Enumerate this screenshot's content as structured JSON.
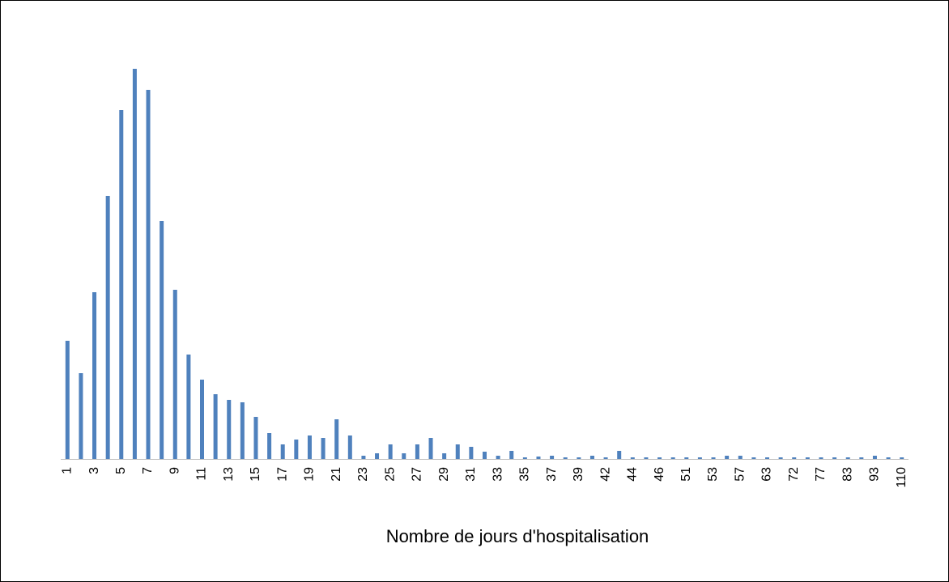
{
  "chart_data": {
    "type": "bar",
    "x_label": "Nombre de jours d'hospitalisation",
    "categories": [
      "1",
      null,
      "3",
      null,
      "5",
      null,
      "7",
      null,
      "9",
      null,
      "11",
      null,
      "13",
      null,
      "15",
      null,
      "17",
      null,
      "19",
      null,
      "21",
      null,
      "23",
      null,
      "25",
      null,
      "27",
      null,
      "29",
      null,
      "31",
      null,
      "33",
      null,
      "35",
      null,
      "37",
      null,
      "39",
      null,
      "42",
      null,
      "44",
      null,
      "46",
      null,
      "51",
      null,
      "53",
      null,
      "57",
      null,
      "63",
      null,
      "72",
      null,
      "77",
      null,
      "83",
      null,
      "93",
      null,
      "110"
    ],
    "values": [
      146,
      106,
      206,
      325,
      431,
      482,
      456,
      294,
      209,
      129,
      98,
      80,
      73,
      70,
      52,
      32,
      18,
      24,
      29,
      26,
      49,
      29,
      4,
      7,
      18,
      7,
      18,
      26,
      7,
      18,
      15,
      9,
      4,
      10,
      2,
      3,
      4,
      2,
      2,
      4,
      2,
      10,
      2,
      2,
      2,
      2,
      2,
      2,
      2,
      4,
      4,
      2,
      2,
      2,
      2,
      2,
      2,
      2,
      2,
      2,
      4,
      2,
      2
    ],
    "color": "#4f81bd",
    "ylim": [
      0,
      500
    ]
  }
}
